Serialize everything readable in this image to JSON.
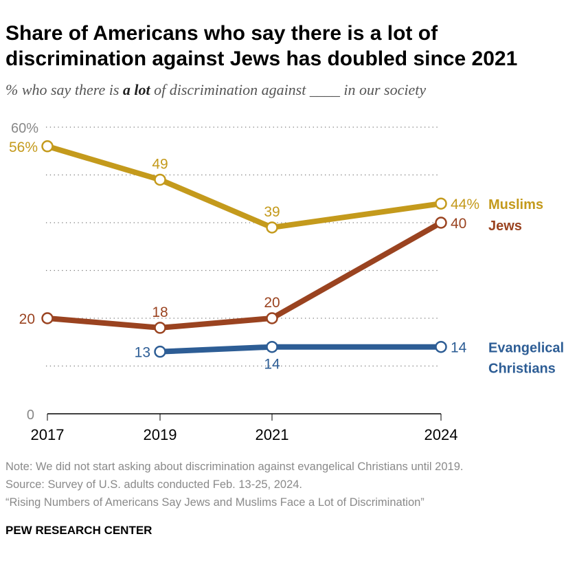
{
  "title": "Share of Americans who say there is a lot of discrimination against Jews has doubled since 2021",
  "subtitle": {
    "pre": "% who say there is ",
    "bold": "a lot",
    "post": " of discrimination against ____ in our society"
  },
  "notes": [
    "Note: We did not start asking about discrimination against evangelical Christians until 2019.",
    "Source: Survey of U.S. adults conducted Feb. 13-25, 2024.",
    "“Rising Numbers of Americans Say Jews and Muslims Face a Lot of Discrimination”"
  ],
  "brand": "PEW RESEARCH CENTER",
  "chart_data": {
    "type": "line",
    "x": [
      "2017",
      "2019",
      "2021",
      "2024"
    ],
    "ylim": [
      0,
      60
    ],
    "yticks": [
      "0",
      "60%"
    ],
    "grid": true,
    "series": [
      {
        "name": "Muslims",
        "color": "#C49A1C",
        "values": [
          56,
          49,
          39,
          44
        ],
        "labels": [
          "56%",
          "49",
          "39",
          "44%"
        ]
      },
      {
        "name": "Jews",
        "color": "#9A4320",
        "values": [
          20,
          18,
          20,
          40
        ],
        "labels": [
          "20",
          "18",
          "20",
          "40"
        ]
      },
      {
        "name": "Evangelical Christians",
        "name_lines": [
          "Evangelical",
          "Christians"
        ],
        "color": "#2D5D95",
        "values": [
          null,
          13,
          14,
          14
        ],
        "labels": [
          "",
          "13",
          "14",
          "14"
        ]
      }
    ]
  }
}
